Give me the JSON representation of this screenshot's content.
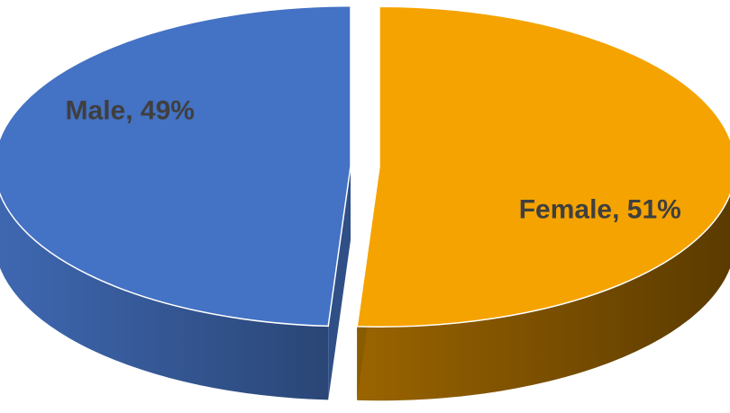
{
  "chart_data": {
    "type": "pie",
    "style": "3d-exploded",
    "title": "",
    "legend": "none",
    "slices": [
      {
        "label": "Female",
        "value": 51,
        "display": "Female, 51%",
        "color": "#f5a300",
        "side_color": "#8a5c00"
      },
      {
        "label": "Male",
        "value": 49,
        "display": "Male, 49%",
        "color": "#4472c4",
        "side_color": "#2f4f86"
      }
    ]
  }
}
